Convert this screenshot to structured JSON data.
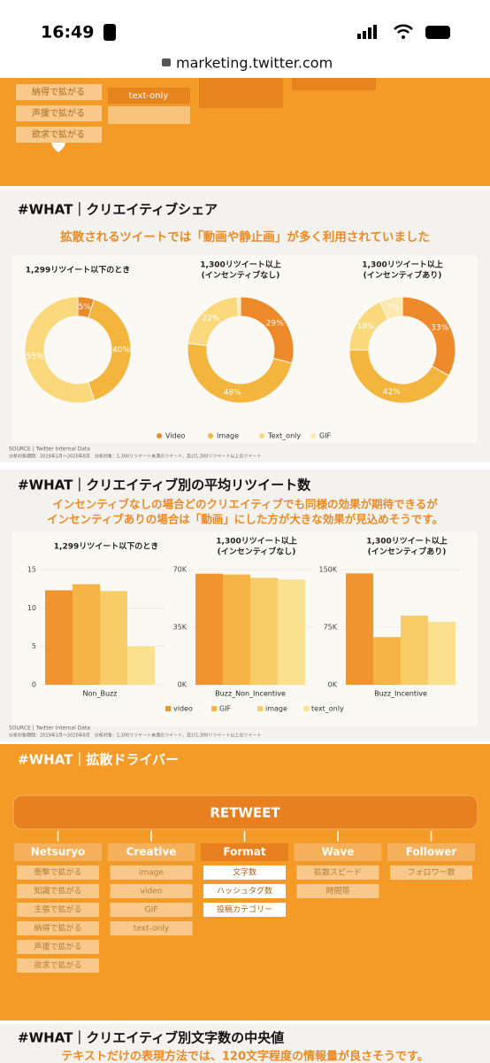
{
  "status_bar": {
    "time": "16:49"
  },
  "browser": {
    "url": "marketing.twitter.com"
  },
  "top_slide": {
    "netsuryo_items": [
      "納得で拡がる",
      "声援で拡がる",
      "欲求で拡がる"
    ],
    "creative_items": [
      "text-only"
    ]
  },
  "share_slide": {
    "title": "#WHAT｜クリエイティブシェア",
    "subtitle": "拡散されるツイートでは「動画や静止画」が多く利用されていました",
    "source": "SOURCE | Twitter Internal Data",
    "note": "分析対象期間：2019年1月〜2020年8月　分析対象：1,300リツイート未満のツイート、及び1,300リツイート以上のツイート"
  },
  "retweet_slide": {
    "title": "#WHAT｜クリエイティブ別の平均リツイート数",
    "subtitle": [
      "インセンティブなしの場合どのクリエイティブでも同様の効果が期待できるが",
      "インセンティブありの場合は「動画」にした方が大きな効果が見込めそうです。"
    ],
    "source": "SOURCE | Twitter Internal Data",
    "note": "分析対象期間：2019年1月〜2020年8月　分析対象：1,300リツイート未満のツイート、及び1,300リツイート以上のツイート"
  },
  "driver_slide": {
    "title": "#WHAT｜拡散ドライバー",
    "center": "RETWEET",
    "columns": [
      {
        "heading": "Netsuryo",
        "items": [
          "衝撃で拡がる",
          "知識で拡がる",
          "主張で拡がる",
          "納得で拡がる",
          "声援で拡がる",
          "欲求で拡がる"
        ]
      },
      {
        "heading": "Creative",
        "items": [
          "image",
          "video",
          "GIF",
          "text-only"
        ]
      },
      {
        "heading": "Format",
        "items": [
          "文字数",
          "ハッシュタグ数",
          "投稿カテゴリー"
        ]
      },
      {
        "heading": "Wave",
        "items": [
          "拡散スピード",
          "時間帯"
        ]
      },
      {
        "heading": "Follower",
        "items": [
          "フォロワー数"
        ]
      }
    ]
  },
  "length_slide": {
    "title": "#WHAT｜クリエイティブ別文字数の中央値",
    "subtitle": "テキストだけの表現方法では、120文字程度の情報量が良さそうです。"
  },
  "chart_data": [
    {
      "type": "pie",
      "title": [
        "1,299リツイート以下のとき"
      ],
      "categories": [
        "Video",
        "Image",
        "Text_only"
      ],
      "colors": [
        "#ec8a2c",
        "#f4b53f",
        "#f9d97c"
      ],
      "values": [
        5,
        40,
        55
      ],
      "value_labels": [
        "5%",
        "40%",
        "55%"
      ]
    },
    {
      "type": "pie",
      "title": [
        "1,300リツイート以上",
        "(インセンティブなし)"
      ],
      "categories": [
        "Video",
        "Image",
        "Text_only",
        "GIF"
      ],
      "colors": [
        "#ec8a2c",
        "#f4b53f",
        "#f9d97c",
        "#fce9ad"
      ],
      "values": [
        29,
        48,
        22,
        1
      ],
      "value_labels": [
        "29%",
        "48%",
        "22%",
        null
      ]
    },
    {
      "type": "pie",
      "title": [
        "1,300リツイート以上",
        "(インセンティブあり)"
      ],
      "categories": [
        "Video",
        "Image",
        "Text_only",
        "GIF"
      ],
      "colors": [
        "#ec8a2c",
        "#f4b53f",
        "#f9d97c",
        "#fce9ad"
      ],
      "values": [
        33,
        42,
        18,
        7
      ],
      "value_labels": [
        "33%",
        "42%",
        "18%",
        "7%"
      ]
    },
    {
      "type": "bar",
      "title": [
        "1,299リツイート以下のとき"
      ],
      "categories": [
        "Non_Buzz"
      ],
      "ylim": [
        0,
        15
      ],
      "yticks": [
        0,
        5,
        10,
        15
      ],
      "series": [
        {
          "name": "video",
          "color": "#f0942f",
          "values": [
            12.3
          ]
        },
        {
          "name": "GIF",
          "color": "#f5b444",
          "values": [
            13.1
          ]
        },
        {
          "name": "image",
          "color": "#f8cd68",
          "values": [
            12.2
          ]
        },
        {
          "name": "text_only",
          "color": "#fbe08e",
          "values": [
            5
          ]
        }
      ]
    },
    {
      "type": "bar",
      "title": [
        "1,300リツイート以上",
        "(インセンティブなし)"
      ],
      "categories": [
        "Buzz_Non_Incentive"
      ],
      "ylim": [
        0,
        70000
      ],
      "yticks": [
        {
          "value": 0,
          "label": "0K"
        },
        {
          "value": 35000,
          "label": "35K"
        },
        {
          "value": 70000,
          "label": "70K"
        }
      ],
      "series": [
        {
          "name": "video",
          "color": "#f0942f",
          "values": [
            67500
          ]
        },
        {
          "name": "GIF",
          "color": "#f5b444",
          "values": [
            67000
          ]
        },
        {
          "name": "image",
          "color": "#f8cd68",
          "values": [
            65000
          ]
        },
        {
          "name": "text_only",
          "color": "#fbe08e",
          "values": [
            64000
          ]
        }
      ]
    },
    {
      "type": "bar",
      "title": [
        "1,300リツイート以上",
        "(インセンティブあり)"
      ],
      "categories": [
        "Buzz_Incentive"
      ],
      "ylim": [
        0,
        150000
      ],
      "yticks": [
        {
          "value": 0,
          "label": "0K"
        },
        {
          "value": 75000,
          "label": "75K"
        },
        {
          "value": 150000,
          "label": "150K"
        }
      ],
      "series": [
        {
          "name": "video",
          "color": "#f0942f",
          "values": [
            145000
          ]
        },
        {
          "name": "GIF",
          "color": "#f5b444",
          "values": [
            62000
          ]
        },
        {
          "name": "image",
          "color": "#f8cd68",
          "values": [
            90000
          ]
        },
        {
          "name": "text_only",
          "color": "#fbe08e",
          "values": [
            82000
          ]
        }
      ]
    }
  ]
}
